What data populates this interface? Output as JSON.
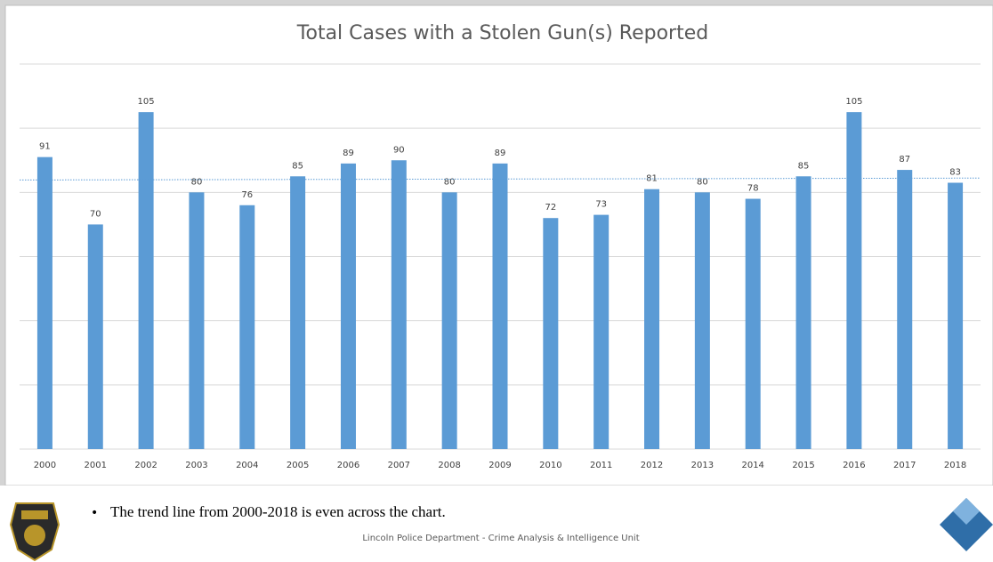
{
  "chart_data": {
    "type": "bar",
    "title": "Total Cases with a Stolen Gun(s) Reported",
    "categories": [
      "2000",
      "2001",
      "2002",
      "2003",
      "2004",
      "2005",
      "2006",
      "2007",
      "2008",
      "2009",
      "2010",
      "2011",
      "2012",
      "2013",
      "2014",
      "2015",
      "2016",
      "2017",
      "2018"
    ],
    "values": [
      91,
      70,
      105,
      80,
      76,
      85,
      89,
      90,
      80,
      89,
      72,
      73,
      81,
      80,
      78,
      85,
      105,
      87,
      83
    ],
    "color": "#5b9bd5",
    "ylim": [
      0,
      120
    ],
    "yticks": [
      0,
      20,
      40,
      60,
      80,
      100,
      120
    ],
    "grid": true,
    "trendline": true
  },
  "footer": {
    "bullet": "The trend line from 2000-2018 is even across the chart.",
    "credit": "Lincoln Police Department - Crime Analysis & Intelligence Unit"
  }
}
